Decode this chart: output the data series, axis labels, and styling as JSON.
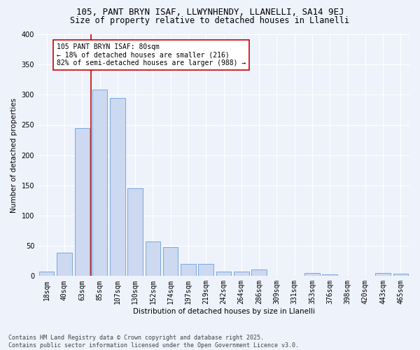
{
  "title1": "105, PANT BRYN ISAF, LLWYNHENDY, LLANELLI, SA14 9EJ",
  "title2": "Size of property relative to detached houses in Llanelli",
  "xlabel": "Distribution of detached houses by size in Llanelli",
  "ylabel": "Number of detached properties",
  "categories": [
    "18sqm",
    "40sqm",
    "63sqm",
    "85sqm",
    "107sqm",
    "130sqm",
    "152sqm",
    "174sqm",
    "197sqm",
    "219sqm",
    "242sqm",
    "264sqm",
    "286sqm",
    "309sqm",
    "331sqm",
    "353sqm",
    "376sqm",
    "398sqm",
    "420sqm",
    "443sqm",
    "465sqm"
  ],
  "values": [
    7,
    39,
    245,
    308,
    295,
    145,
    57,
    48,
    20,
    20,
    7,
    7,
    11,
    0,
    0,
    5,
    3,
    0,
    0,
    5,
    4
  ],
  "bar_color": "#ccd9f0",
  "bar_edge_color": "#6a9fd8",
  "vline_x_index": 3,
  "vline_color": "#cc0000",
  "annotation_text": "105 PANT BRYN ISAF: 80sqm\n← 18% of detached houses are smaller (216)\n82% of semi-detached houses are larger (988) →",
  "annotation_box_color": "#ffffff",
  "annotation_box_edge": "#cc0000",
  "ylim": [
    0,
    400
  ],
  "yticks": [
    0,
    50,
    100,
    150,
    200,
    250,
    300,
    350,
    400
  ],
  "footer": "Contains HM Land Registry data © Crown copyright and database right 2025.\nContains public sector information licensed under the Open Government Licence v3.0.",
  "bg_color": "#eef2fb",
  "grid_color": "#ffffff",
  "title_fontsize": 9,
  "subtitle_fontsize": 8.5,
  "axis_label_fontsize": 7.5,
  "tick_fontsize": 7,
  "annotation_fontsize": 7,
  "footer_fontsize": 6
}
